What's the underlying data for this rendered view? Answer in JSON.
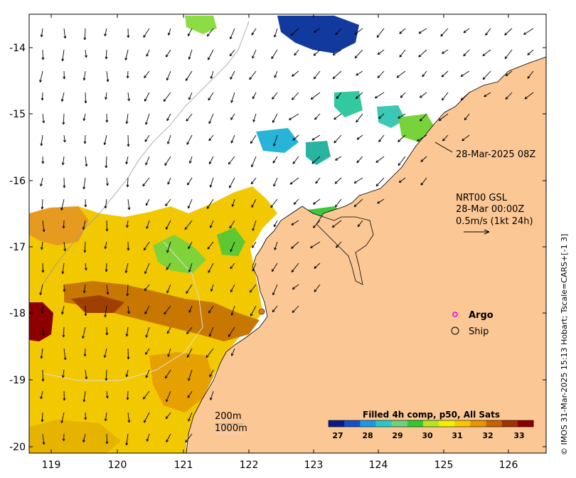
{
  "map": {
    "lon_ticks": [
      "119",
      "120",
      "121",
      "122",
      "123",
      "124",
      "125",
      "126"
    ],
    "lat_ticks": [
      "-14",
      "-15",
      "-16",
      "-17",
      "-18",
      "-19",
      "-20"
    ],
    "lon_range": [
      118.6,
      126.7
    ],
    "lat_range": [
      -20.1,
      -13.5
    ]
  },
  "annotations": {
    "timestamp": "28-Mar-2025 08Z",
    "product_line1": "NRT00 GSL",
    "product_line2": "28-Mar 00:00Z",
    "scale_text": "0.5m/s (1kt 24h)"
  },
  "legend": {
    "argo_label": "Argo",
    "ship_label": "Ship",
    "argo_color": "#e000e0",
    "ship_color": "#000000"
  },
  "contours": {
    "label_200m": "200m",
    "label_1000m": "1000m"
  },
  "colorbar": {
    "title": "Filled 4h comp, p50, All Sats",
    "ticks": [
      "27",
      "28",
      "29",
      "30",
      "31",
      "32",
      "33"
    ],
    "colors": [
      "#0a1a8c",
      "#1450c8",
      "#1e96e6",
      "#28c8c8",
      "#6ed27a",
      "#32c832",
      "#b4e61e",
      "#f0f000",
      "#f5c800",
      "#e69600",
      "#c86400",
      "#a03200",
      "#8c0000"
    ]
  },
  "credit": "© IMOS 31-Mar-2025 15:13 Hobart; Tscale=CARS+[-1 3]",
  "colors": {
    "land": "#fbc795",
    "no_data": "#ffffff"
  }
}
